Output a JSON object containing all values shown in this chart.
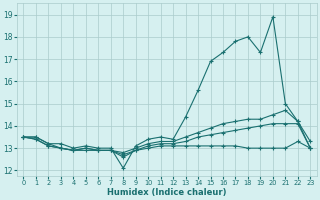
{
  "xlabel": "Humidex (Indice chaleur)",
  "bg_color": "#d6f0f0",
  "grid_color": "#aacccc",
  "line_color": "#1a7070",
  "xlim": [
    -0.5,
    23.5
  ],
  "ylim": [
    11.75,
    19.5
  ],
  "xticks": [
    0,
    1,
    2,
    3,
    4,
    5,
    6,
    7,
    8,
    9,
    10,
    11,
    12,
    13,
    14,
    15,
    16,
    17,
    18,
    19,
    20,
    21,
    22,
    23
  ],
  "yticks": [
    12,
    13,
    14,
    15,
    16,
    17,
    18,
    19
  ],
  "line1_y": [
    13.5,
    13.5,
    13.2,
    13.2,
    13.0,
    13.1,
    13.0,
    13.0,
    12.1,
    13.1,
    13.4,
    13.5,
    13.4,
    14.4,
    15.6,
    16.9,
    17.3,
    17.8,
    18.0,
    17.3,
    18.9,
    15.0,
    14.2,
    13.3
  ],
  "line2_y": [
    13.5,
    13.5,
    13.2,
    13.0,
    12.9,
    13.0,
    12.9,
    12.9,
    12.8,
    13.0,
    13.2,
    13.3,
    13.3,
    13.5,
    13.7,
    13.9,
    14.1,
    14.2,
    14.3,
    14.3,
    14.5,
    14.7,
    14.2,
    13.0
  ],
  "line3_y": [
    13.5,
    13.4,
    13.1,
    13.0,
    12.9,
    13.0,
    12.9,
    12.9,
    12.7,
    12.9,
    13.1,
    13.2,
    13.2,
    13.3,
    13.5,
    13.6,
    13.7,
    13.8,
    13.9,
    14.0,
    14.1,
    14.1,
    14.1,
    13.0
  ],
  "line4_y": [
    13.5,
    13.4,
    13.1,
    13.0,
    12.9,
    12.9,
    12.9,
    12.9,
    12.6,
    12.9,
    13.0,
    13.1,
    13.1,
    13.1,
    13.1,
    13.1,
    13.1,
    13.1,
    13.0,
    13.0,
    13.0,
    13.0,
    13.3,
    13.0
  ]
}
